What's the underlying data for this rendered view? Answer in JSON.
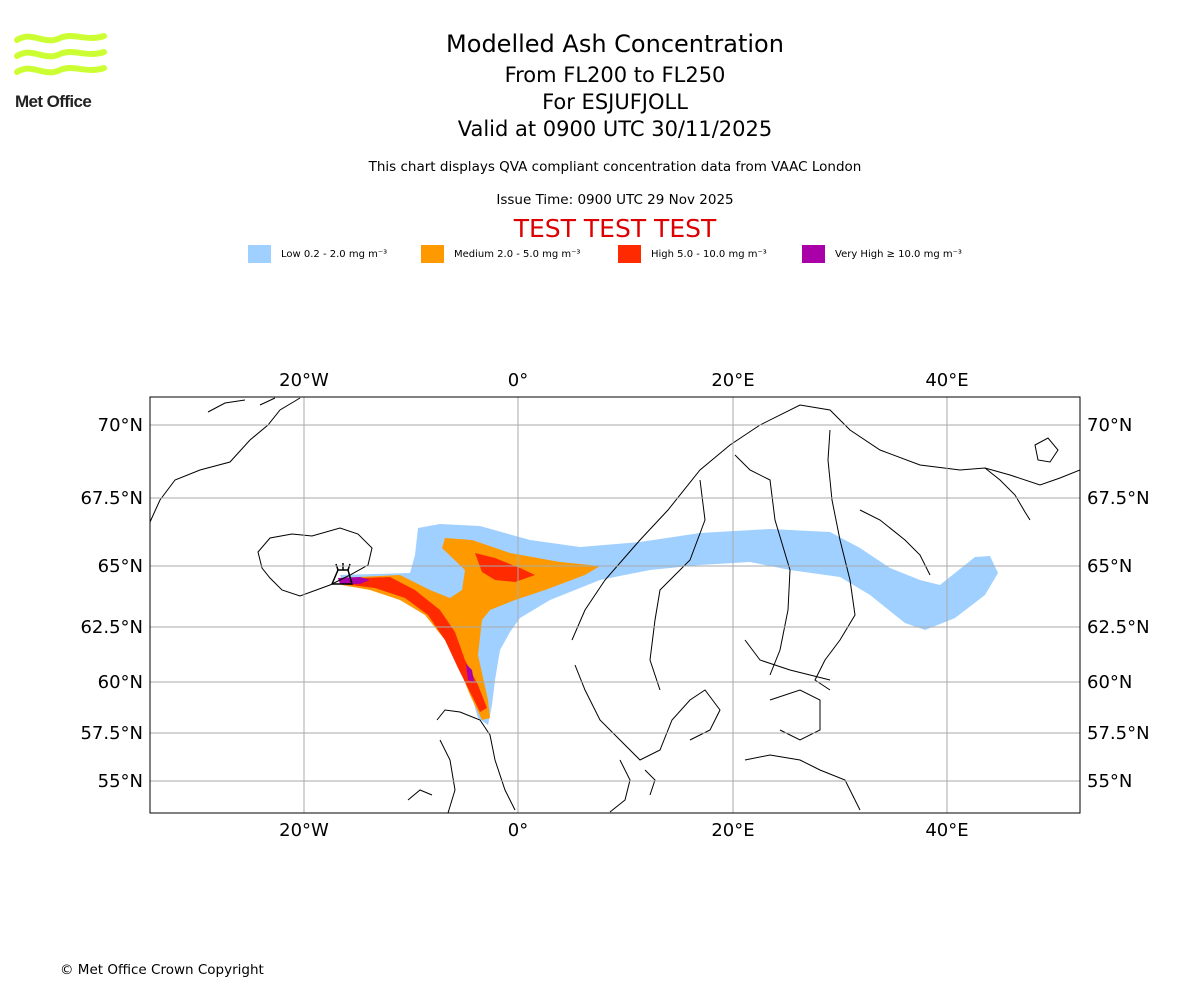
{
  "header": {
    "title": "Modelled Ash Concentration",
    "level_range": "From FL200 to FL250",
    "volcano": "For ESJUFJOLL",
    "valid_time": "Valid at 0900 UTC 30/11/2025",
    "description": "This chart displays QVA compliant concentration data from VAAC London",
    "issue_time": "Issue Time: 0900 UTC 29 Nov 2025",
    "test_banner": "TEST TEST TEST"
  },
  "logo": {
    "text": "Met Office",
    "color": "#ccff33"
  },
  "legend": [
    {
      "label": "Low 0.2 - 2.0 mg m⁻³",
      "color": "#a0d0ff"
    },
    {
      "label": "Medium 2.0 - 5.0 mg m⁻³",
      "color": "#ff9900"
    },
    {
      "label": "High 5.0 - 10.0 mg m⁻³",
      "color": "#ff2a00"
    },
    {
      "label": "Very High ≥ 10.0 mg m⁻³",
      "color": "#aa00aa"
    }
  ],
  "map": {
    "lon_ticks": [
      "20°W",
      "0°",
      "20°E",
      "40°E"
    ],
    "lat_ticks": [
      "70°N",
      "67.5°N",
      "65°N",
      "62.5°N",
      "60°N",
      "57.5°N",
      "55°N"
    ],
    "grid_color": "#aaaaaa"
  },
  "footer": {
    "copyright": "© Met Office Crown Copyright"
  }
}
